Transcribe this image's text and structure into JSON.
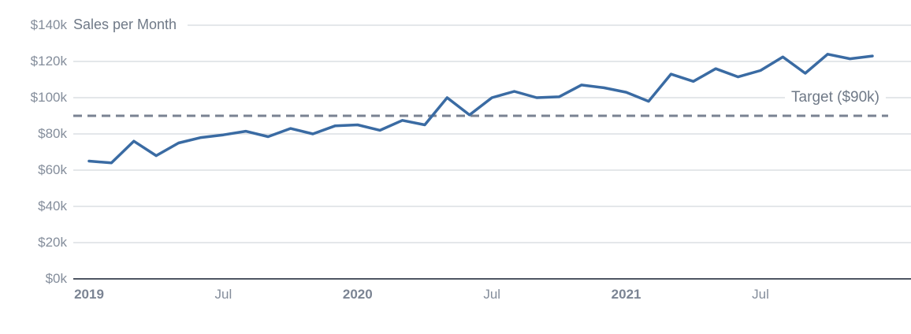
{
  "chart_data": {
    "type": "line",
    "title": "Sales per Month",
    "x": {
      "start": "2019-01",
      "interval": "month",
      "count": 36
    },
    "x_ticks": [
      {
        "label": "2019",
        "month_index": 0,
        "year_tick": true
      },
      {
        "label": "Jul",
        "month_index": 6,
        "year_tick": false
      },
      {
        "label": "2020",
        "month_index": 12,
        "year_tick": true
      },
      {
        "label": "Jul",
        "month_index": 18,
        "year_tick": false
      },
      {
        "label": "2021",
        "month_index": 24,
        "year_tick": true
      },
      {
        "label": "Jul",
        "month_index": 30,
        "year_tick": false
      }
    ],
    "y_ticks": [
      {
        "value_k": 0,
        "label": "$0k"
      },
      {
        "value_k": 20,
        "label": "$20k"
      },
      {
        "value_k": 40,
        "label": "$40k"
      },
      {
        "value_k": 60,
        "label": "$60k"
      },
      {
        "value_k": 80,
        "label": "$80k"
      },
      {
        "value_k": 100,
        "label": "$100k"
      },
      {
        "value_k": 120,
        "label": "$120k"
      },
      {
        "value_k": 140,
        "label": "$140k"
      }
    ],
    "ylim_k": [
      0,
      140
    ],
    "grid": true,
    "legend_position": "none",
    "series": [
      {
        "name": "Sales per Month",
        "values_k": [
          65,
          64,
          76,
          68,
          75,
          78,
          79.5,
          81.5,
          78.5,
          83,
          80,
          84.5,
          85,
          82,
          87.5,
          85,
          100,
          90.5,
          100,
          103.5,
          100,
          100.5,
          107,
          105.5,
          103,
          98,
          113,
          109,
          116,
          111.5,
          115,
          122.5,
          113.5,
          124,
          121.5,
          123
        ]
      }
    ],
    "target": {
      "label": "Target ($90k)",
      "value_k": 90,
      "style": "dashed"
    }
  },
  "colors": {
    "bg": "#ffffff",
    "line": "#3a6ba3",
    "grid": "#dcdfe4",
    "axis": "#4e5663",
    "target_dash": "#7a8392",
    "tick_text": "#848d9b",
    "year_text": "#7b8493",
    "title_text": "#6f7987"
  }
}
